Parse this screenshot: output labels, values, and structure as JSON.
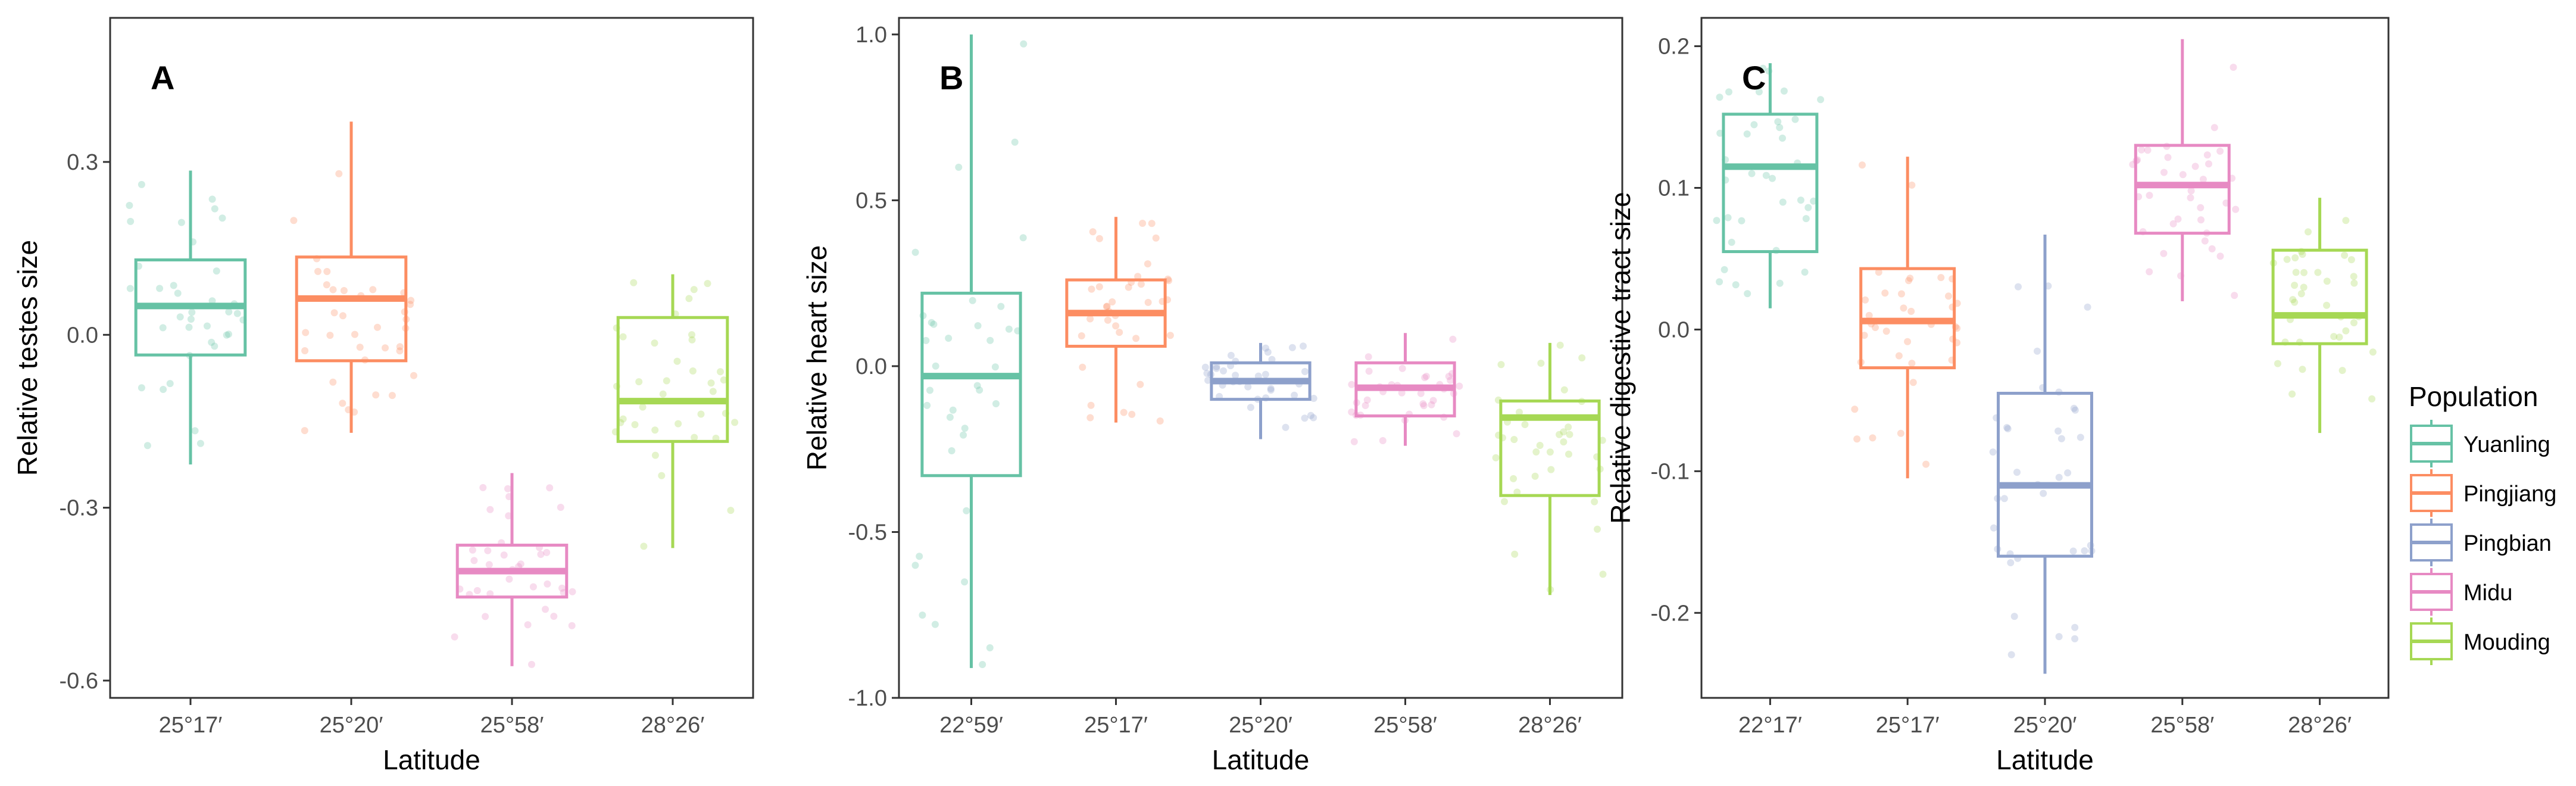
{
  "colors": {
    "Yuanling": "#66c2a5",
    "Pingjiang": "#fc8d62",
    "Pingbian": "#8da0cb",
    "Midu": "#e78ac3",
    "Mouding": "#a6d854"
  },
  "legend": {
    "title": "Population",
    "entries": [
      "Yuanling",
      "Pingjiang",
      "Pingbian",
      "Midu",
      "Mouding"
    ]
  },
  "chart_data": [
    {
      "type": "box",
      "panel_label": "A",
      "xlabel": "Latitude",
      "ylabel": "Relative testes size",
      "ylim": [
        -0.63,
        0.55
      ],
      "yticks": [
        -0.6,
        -0.3,
        0.0,
        0.3
      ],
      "ytick_labels": [
        "-0.6",
        "-0.3",
        "0.0",
        "0.3"
      ],
      "categories": [
        "25°17′",
        "25°20′",
        "25°58′",
        "28°26′"
      ],
      "boxes": [
        {
          "population": "Yuanling",
          "whisker_low": -0.225,
          "q1": -0.035,
          "median": 0.05,
          "q3": 0.13,
          "whisker_high": 0.285
        },
        {
          "population": "Pingjiang",
          "whisker_low": -0.17,
          "q1": -0.045,
          "median": 0.063,
          "q3": 0.135,
          "whisker_high": 0.37
        },
        {
          "population": "Midu",
          "whisker_low": -0.575,
          "q1": -0.455,
          "median": -0.41,
          "q3": -0.365,
          "whisker_high": -0.24
        },
        {
          "population": "Mouding",
          "whisker_low": -0.37,
          "q1": -0.185,
          "median": -0.115,
          "q3": 0.03,
          "whisker_high": 0.105
        }
      ]
    },
    {
      "type": "box",
      "panel_label": "B",
      "xlabel": "Latitude",
      "ylabel": "Relative heart size",
      "ylim": [
        -1.0,
        1.05
      ],
      "yticks": [
        -1.0,
        -0.5,
        0.0,
        0.5,
        1.0
      ],
      "ytick_labels": [
        "-1.0",
        "-0.5",
        "0.0",
        "0.5",
        "1.0"
      ],
      "categories": [
        "22°59′",
        "25°17′",
        "25°20′",
        "25°58′",
        "28°26′"
      ],
      "boxes": [
        {
          "population": "Yuanling",
          "whisker_low": -0.91,
          "q1": -0.33,
          "median": -0.03,
          "q3": 0.22,
          "whisker_high": 1.0
        },
        {
          "population": "Pingjiang",
          "whisker_low": -0.17,
          "q1": 0.06,
          "median": 0.16,
          "q3": 0.26,
          "whisker_high": 0.45
        },
        {
          "population": "Pingbian",
          "whisker_low": -0.22,
          "q1": -0.1,
          "median": -0.045,
          "q3": 0.01,
          "whisker_high": 0.07
        },
        {
          "population": "Midu",
          "whisker_low": -0.24,
          "q1": -0.15,
          "median": -0.065,
          "q3": 0.01,
          "whisker_high": 0.1
        },
        {
          "population": "Mouding",
          "whisker_low": -0.69,
          "q1": -0.39,
          "median": -0.155,
          "q3": -0.105,
          "whisker_high": 0.07
        }
      ]
    },
    {
      "type": "box",
      "panel_label": "C",
      "xlabel": "Latitude",
      "ylabel": "Relative digestive tract size",
      "ylim": [
        -0.26,
        0.22
      ],
      "yticks": [
        -0.2,
        -0.1,
        0.0,
        0.1,
        0.2
      ],
      "ytick_labels": [
        "-0.2",
        "-0.1",
        "0.0",
        "0.1",
        "0.2"
      ],
      "categories": [
        "22°17′",
        "25°17′",
        "25°20′",
        "25°58′",
        "28°26′"
      ],
      "boxes": [
        {
          "population": "Yuanling",
          "whisker_low": 0.015,
          "q1": 0.055,
          "median": 0.115,
          "q3": 0.152,
          "whisker_high": 0.188
        },
        {
          "population": "Pingjiang",
          "whisker_low": -0.105,
          "q1": -0.027,
          "median": 0.006,
          "q3": 0.043,
          "whisker_high": 0.122
        },
        {
          "population": "Pingbian",
          "whisker_low": -0.243,
          "q1": -0.16,
          "median": -0.11,
          "q3": -0.045,
          "whisker_high": 0.067
        },
        {
          "population": "Midu",
          "whisker_low": 0.02,
          "q1": 0.068,
          "median": 0.102,
          "q3": 0.13,
          "whisker_high": 0.205
        },
        {
          "population": "Mouding",
          "whisker_low": -0.073,
          "q1": -0.01,
          "median": 0.01,
          "q3": 0.056,
          "whisker_high": 0.093
        }
      ]
    }
  ]
}
